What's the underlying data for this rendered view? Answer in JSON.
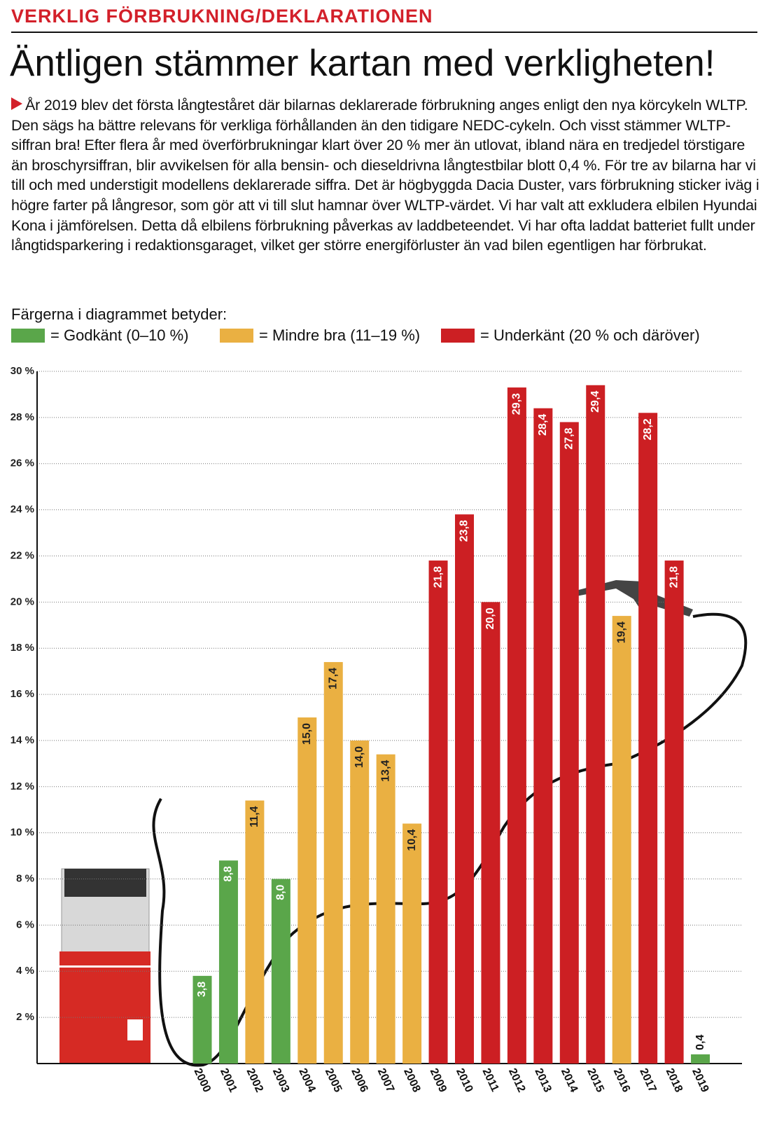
{
  "header": {
    "kicker": "VERKLIG FÖRBRUKNING/DEKLARATIONEN",
    "title": "Äntligen stämmer kartan med verkligheten!",
    "body": "År 2019 blev det första långteståret där bilarnas deklarerade förbrukning anges enligt den nya körcykeln WLTP. Den sägs ha bättre relevans för verkliga förhållanden än den tidigare NEDC-cykeln. Och visst stämmer WLTP-siffran bra! Efter flera år med överförbrukningar klart över 20 % mer än utlovat, ibland nära en tredjedel törstigare än broschyrsiffran, blir avvikelsen för alla bensin- och dieseldrivna långtestbilar blott 0,4 %. För tre av bilarna har vi till och med understigit modellens deklarerade siffra. Det är högbyggda Dacia Duster, vars förbrukning sticker iväg i högre farter på långresor, som gör att vi till slut hamnar över WLTP-värdet. Vi har valt att exkludera elbilen Hyundai Kona i jämförelsen. Detta då elbilens förbrukning påverkas av laddbeteendet. Vi har ofta laddat batteriet fullt under långtidsparkering i redaktionsgaraget, vilket ger större energiförluster än vad bilen egentligen har förbrukat.",
    "legend_title": "Färgerna i diagrammet betyder:"
  },
  "chart_data": {
    "type": "bar",
    "legend": [
      {
        "label": "= Godkänt (0–10 %)",
        "color": "#5aa64a"
      },
      {
        "label": "= Mindre bra (11–19 %)",
        "color": "#eab042"
      },
      {
        "label": "= Underkänt (20 % och däröver)",
        "color": "#cc1f23"
      }
    ],
    "categories": [
      "2000",
      "2001",
      "2002",
      "2003",
      "2004",
      "2005",
      "2006",
      "2007",
      "2008",
      "2009",
      "2010",
      "2011",
      "2012",
      "2013",
      "2014",
      "2015",
      "2016",
      "2017",
      "2018",
      "2019"
    ],
    "values": [
      3.8,
      8.8,
      11.4,
      8.0,
      15.0,
      17.4,
      14.0,
      13.4,
      10.4,
      21.8,
      23.8,
      20.0,
      29.3,
      28.4,
      27.8,
      29.4,
      19.4,
      28.2,
      21.8,
      0.4
    ],
    "value_labels": [
      "3,8",
      "8,8",
      "11,4",
      "8,0",
      "15,0",
      "17,4",
      "14,0",
      "13,4",
      "10,4",
      "21,8",
      "23,8",
      "20,0",
      "29,3",
      "28,4",
      "27,8",
      "29,4",
      "19,4",
      "28,2",
      "21,8",
      "0,4"
    ],
    "colors": [
      "#5aa64a",
      "#5aa64a",
      "#eab042",
      "#5aa64a",
      "#eab042",
      "#eab042",
      "#eab042",
      "#eab042",
      "#eab042",
      "#cc1f23",
      "#cc1f23",
      "#cc1f23",
      "#cc1f23",
      "#cc1f23",
      "#cc1f23",
      "#cc1f23",
      "#eab042",
      "#cc1f23",
      "#cc1f23",
      "#5aa64a"
    ],
    "ylim": [
      0,
      30
    ],
    "yticks": [
      {
        "value": 2,
        "label": "2 %"
      },
      {
        "value": 4,
        "label": "4 %"
      },
      {
        "value": 6,
        "label": "6 %"
      },
      {
        "value": 8,
        "label": "8 %"
      },
      {
        "value": 10,
        "label": "10 %"
      },
      {
        "value": 12,
        "label": "12 %"
      },
      {
        "value": 14,
        "label": "14 %"
      },
      {
        "value": 16,
        "label": "16 %"
      },
      {
        "value": 18,
        "label": "18 %"
      },
      {
        "value": 20,
        "label": "20 %"
      },
      {
        "value": 22,
        "label": "22 %"
      },
      {
        "value": 24,
        "label": "24 %"
      },
      {
        "value": 26,
        "label": "26 %"
      },
      {
        "value": 28,
        "label": "28 %"
      },
      {
        "value": 30,
        "label": "30 %"
      }
    ],
    "grid": true
  }
}
